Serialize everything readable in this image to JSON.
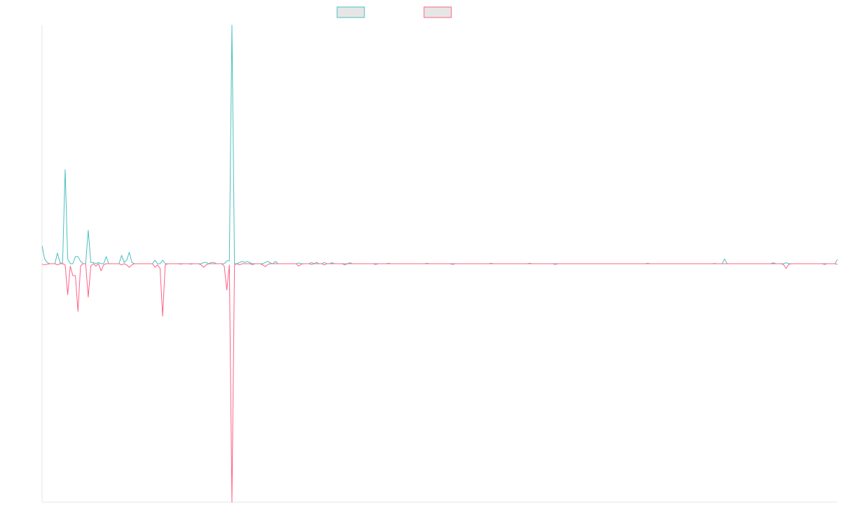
{
  "chart_data": {
    "type": "line",
    "title": "",
    "xlabel": "",
    "ylabel": "",
    "legend_position": "top-center",
    "grid": false,
    "x_count": 311,
    "ylim": [
      -1,
      1
    ],
    "series": [
      {
        "color": "#4bc0c0",
        "fill": "#e6e6e6",
        "direction": "up",
        "points": [
          [
            0,
            0.075
          ],
          [
            1,
            0.02
          ],
          [
            2,
            0.005
          ],
          [
            6,
            0.045
          ],
          [
            7,
            0.005
          ],
          [
            9,
            0.395
          ],
          [
            10,
            0.02
          ],
          [
            11,
            0.0
          ],
          [
            13,
            0.03
          ],
          [
            14,
            0.03
          ],
          [
            15,
            0.01
          ],
          [
            18,
            0.14
          ],
          [
            19,
            0.005
          ],
          [
            20,
            0.005
          ],
          [
            22,
            0.005
          ],
          [
            25,
            0.03
          ],
          [
            26,
            0.0
          ],
          [
            31,
            0.035
          ],
          [
            32,
            0.005
          ],
          [
            33,
            0.015
          ],
          [
            34,
            0.048
          ],
          [
            35,
            0.005
          ],
          [
            44,
            0.015
          ],
          [
            47,
            0.015
          ],
          [
            48,
            0.0
          ],
          [
            63,
            0.005
          ],
          [
            64,
            0.005
          ],
          [
            65,
            0.0
          ],
          [
            66,
            0.005
          ],
          [
            67,
            0.005
          ],
          [
            72,
            0.012
          ],
          [
            73,
            0.012
          ],
          [
            74,
            1.0
          ],
          [
            75,
            0.0
          ],
          [
            77,
            0.005
          ],
          [
            78,
            0.01
          ],
          [
            79,
            0.005
          ],
          [
            80,
            0.01
          ],
          [
            81,
            0.004
          ],
          [
            87,
            0.005
          ],
          [
            88,
            0.01
          ],
          [
            89,
            0.003
          ],
          [
            90,
            0.0
          ],
          [
            91,
            0.01
          ],
          [
            100,
            0.003
          ],
          [
            105,
            0.005
          ],
          [
            107,
            0.006
          ],
          [
            108,
            0.0
          ],
          [
            110,
            0.005
          ],
          [
            113,
            0.004
          ],
          [
            120,
            0.004
          ],
          [
            135,
            0.002
          ],
          [
            150,
            0.002
          ],
          [
            175,
            0.002
          ],
          [
            190,
            0.002
          ],
          [
            236,
            0.002
          ],
          [
            262,
            0.001
          ],
          [
            266,
            0.02
          ],
          [
            267,
            0.0
          ],
          [
            285,
            0.004
          ],
          [
            290,
            0.004
          ],
          [
            310,
            0.018
          ]
        ]
      },
      {
        "color": "#ff6384",
        "fill": "#e6e6e6",
        "direction": "down",
        "points": [
          [
            0,
            -0.002
          ],
          [
            1,
            -0.005
          ],
          [
            2,
            -0.002
          ],
          [
            6,
            -0.005
          ],
          [
            7,
            0.0
          ],
          [
            9,
            -0.005
          ],
          [
            10,
            -0.13
          ],
          [
            11,
            -0.01
          ],
          [
            12,
            -0.05
          ],
          [
            13,
            -0.05
          ],
          [
            14,
            -0.2
          ],
          [
            15,
            -0.01
          ],
          [
            18,
            -0.14
          ],
          [
            19,
            -0.01
          ],
          [
            21,
            -0.01
          ],
          [
            23,
            -0.03
          ],
          [
            24,
            -0.005
          ],
          [
            31,
            -0.005
          ],
          [
            33,
            -0.005
          ],
          [
            34,
            -0.015
          ],
          [
            35,
            -0.005
          ],
          [
            44,
            -0.015
          ],
          [
            45,
            -0.005
          ],
          [
            46,
            -0.02
          ],
          [
            47,
            -0.22
          ],
          [
            48,
            -0.005
          ],
          [
            54,
            -0.002
          ],
          [
            58,
            -0.002
          ],
          [
            62,
            -0.005
          ],
          [
            63,
            -0.015
          ],
          [
            64,
            -0.005
          ],
          [
            71,
            -0.01
          ],
          [
            72,
            -0.11
          ],
          [
            73,
            -0.005
          ],
          [
            74,
            -1.0
          ],
          [
            75,
            -0.005
          ],
          [
            77,
            -0.005
          ],
          [
            82,
            -0.004
          ],
          [
            86,
            -0.005
          ],
          [
            87,
            -0.012
          ],
          [
            88,
            -0.003
          ],
          [
            100,
            -0.01
          ],
          [
            101,
            -0.002
          ],
          [
            105,
            -0.003
          ],
          [
            110,
            -0.005
          ],
          [
            118,
            -0.005
          ],
          [
            130,
            -0.003
          ],
          [
            160,
            -0.003
          ],
          [
            200,
            -0.003
          ],
          [
            289,
            -0.004
          ],
          [
            290,
            -0.02
          ],
          [
            291,
            -0.003
          ],
          [
            305,
            -0.003
          ],
          [
            310,
            -0.003
          ]
        ]
      }
    ]
  }
}
